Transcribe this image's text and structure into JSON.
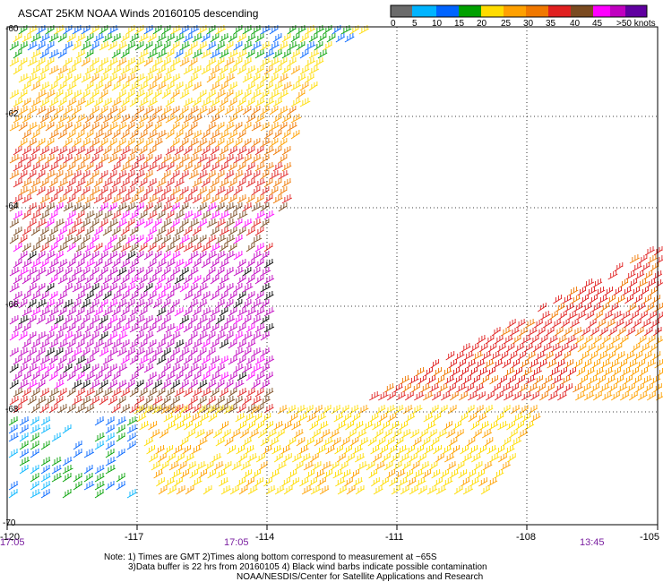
{
  "title": "ASCAT 25KM NOAA Winds 20160105 descending",
  "legend": {
    "colors": [
      "#6b6b6b",
      "#00b4ff",
      "#0064ff",
      "#00a000",
      "#ffdc00",
      "#ffa000",
      "#f07800",
      "#e02020",
      "#7a4a20",
      "#ff00ff",
      "#c000c0",
      "#6000a0"
    ],
    "labels": [
      "0",
      "5",
      "10",
      "15",
      "20",
      "25",
      "30",
      "35",
      "40",
      "45",
      ">50 knots"
    ]
  },
  "lat_labels": [
    "-60",
    "-62",
    "-64",
    "-66",
    "-68",
    "-70"
  ],
  "lon_labels": [
    "-120",
    "-117",
    "-114",
    "-111",
    "-108",
    "-105"
  ],
  "time_labels": [
    "17:05",
    "17:05",
    "13:45"
  ],
  "notes": [
    "Note: 1) Times are GMT 2)Times along bottom correspond to measurement at ~65S",
    "3)Data buffer is 22 hrs from 20160105 4) Black wind barbs indicate possible contamination",
    "NOAA/NESDIS/Center for Satellite Applications and Research"
  ]
}
